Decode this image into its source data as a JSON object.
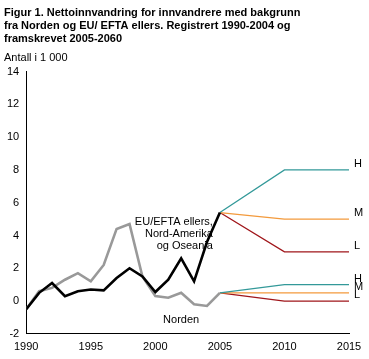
{
  "chart_data": {
    "type": "line",
    "title": [
      "Figur 1. Nettoinnvandring for innvandrere med bakgrunn",
      "fra Norden og EU/ EFTA ellers. Registrert 1990-2004 og",
      "framskrevet 2005-2060"
    ],
    "ylabel": "Antall i 1 000",
    "xlim": [
      1990,
      2015
    ],
    "xticks": [
      1990,
      1995,
      2000,
      2005,
      2010,
      2015
    ],
    "ylim": [
      -2,
      14
    ],
    "yticks": [
      -2,
      0,
      2,
      4,
      6,
      8,
      10,
      12,
      14
    ],
    "grid": false,
    "series": [
      {
        "name": "EU/EFTA ellers,\nNord-Amerika\nog Oseania",
        "color": "#000000",
        "x": [
          1990,
          1991,
          1992,
          1993,
          1994,
          1995,
          1996,
          1997,
          1998,
          1999,
          2000,
          2001,
          2002,
          2003,
          2004,
          2005
        ],
        "values": [
          -0.5,
          0.5,
          1.1,
          0.3,
          0.6,
          0.7,
          0.65,
          1.4,
          2.0,
          1.5,
          0.55,
          1.3,
          2.6,
          1.2,
          3.6,
          5.4
        ]
      },
      {
        "name": "Norden",
        "color": "#999999",
        "x": [
          1990,
          1991,
          1992,
          1993,
          1994,
          1995,
          1996,
          1997,
          1998,
          1999,
          2000,
          2001,
          2002,
          2003,
          2004,
          2005
        ],
        "values": [
          -0.5,
          0.6,
          0.8,
          1.3,
          1.7,
          1.2,
          2.2,
          4.4,
          4.7,
          1.5,
          0.3,
          0.2,
          0.5,
          -0.2,
          -0.3,
          0.5
        ]
      },
      {
        "name": "H",
        "color": "#339999",
        "x": [
          2005,
          2010,
          2015
        ],
        "values": [
          5.4,
          8,
          8
        ]
      },
      {
        "name": "M",
        "color": "#f39a3c",
        "x": [
          2005,
          2010,
          2015
        ],
        "values": [
          5.4,
          5,
          5
        ]
      },
      {
        "name": "L",
        "color": "#a0161b",
        "x": [
          2005,
          2010,
          2015
        ],
        "values": [
          5.4,
          3,
          3
        ]
      },
      {
        "name": "H",
        "color": "#339999",
        "x": [
          2005,
          2010,
          2015
        ],
        "values": [
          0.5,
          1,
          1
        ]
      },
      {
        "name": "M",
        "color": "#f39a3c",
        "x": [
          2005,
          2010,
          2015
        ],
        "values": [
          0.5,
          0.5,
          0.5
        ]
      },
      {
        "name": "L",
        "color": "#a0161b",
        "x": [
          2005,
          2010,
          2015
        ],
        "values": [
          0.5,
          0,
          0
        ]
      }
    ]
  }
}
